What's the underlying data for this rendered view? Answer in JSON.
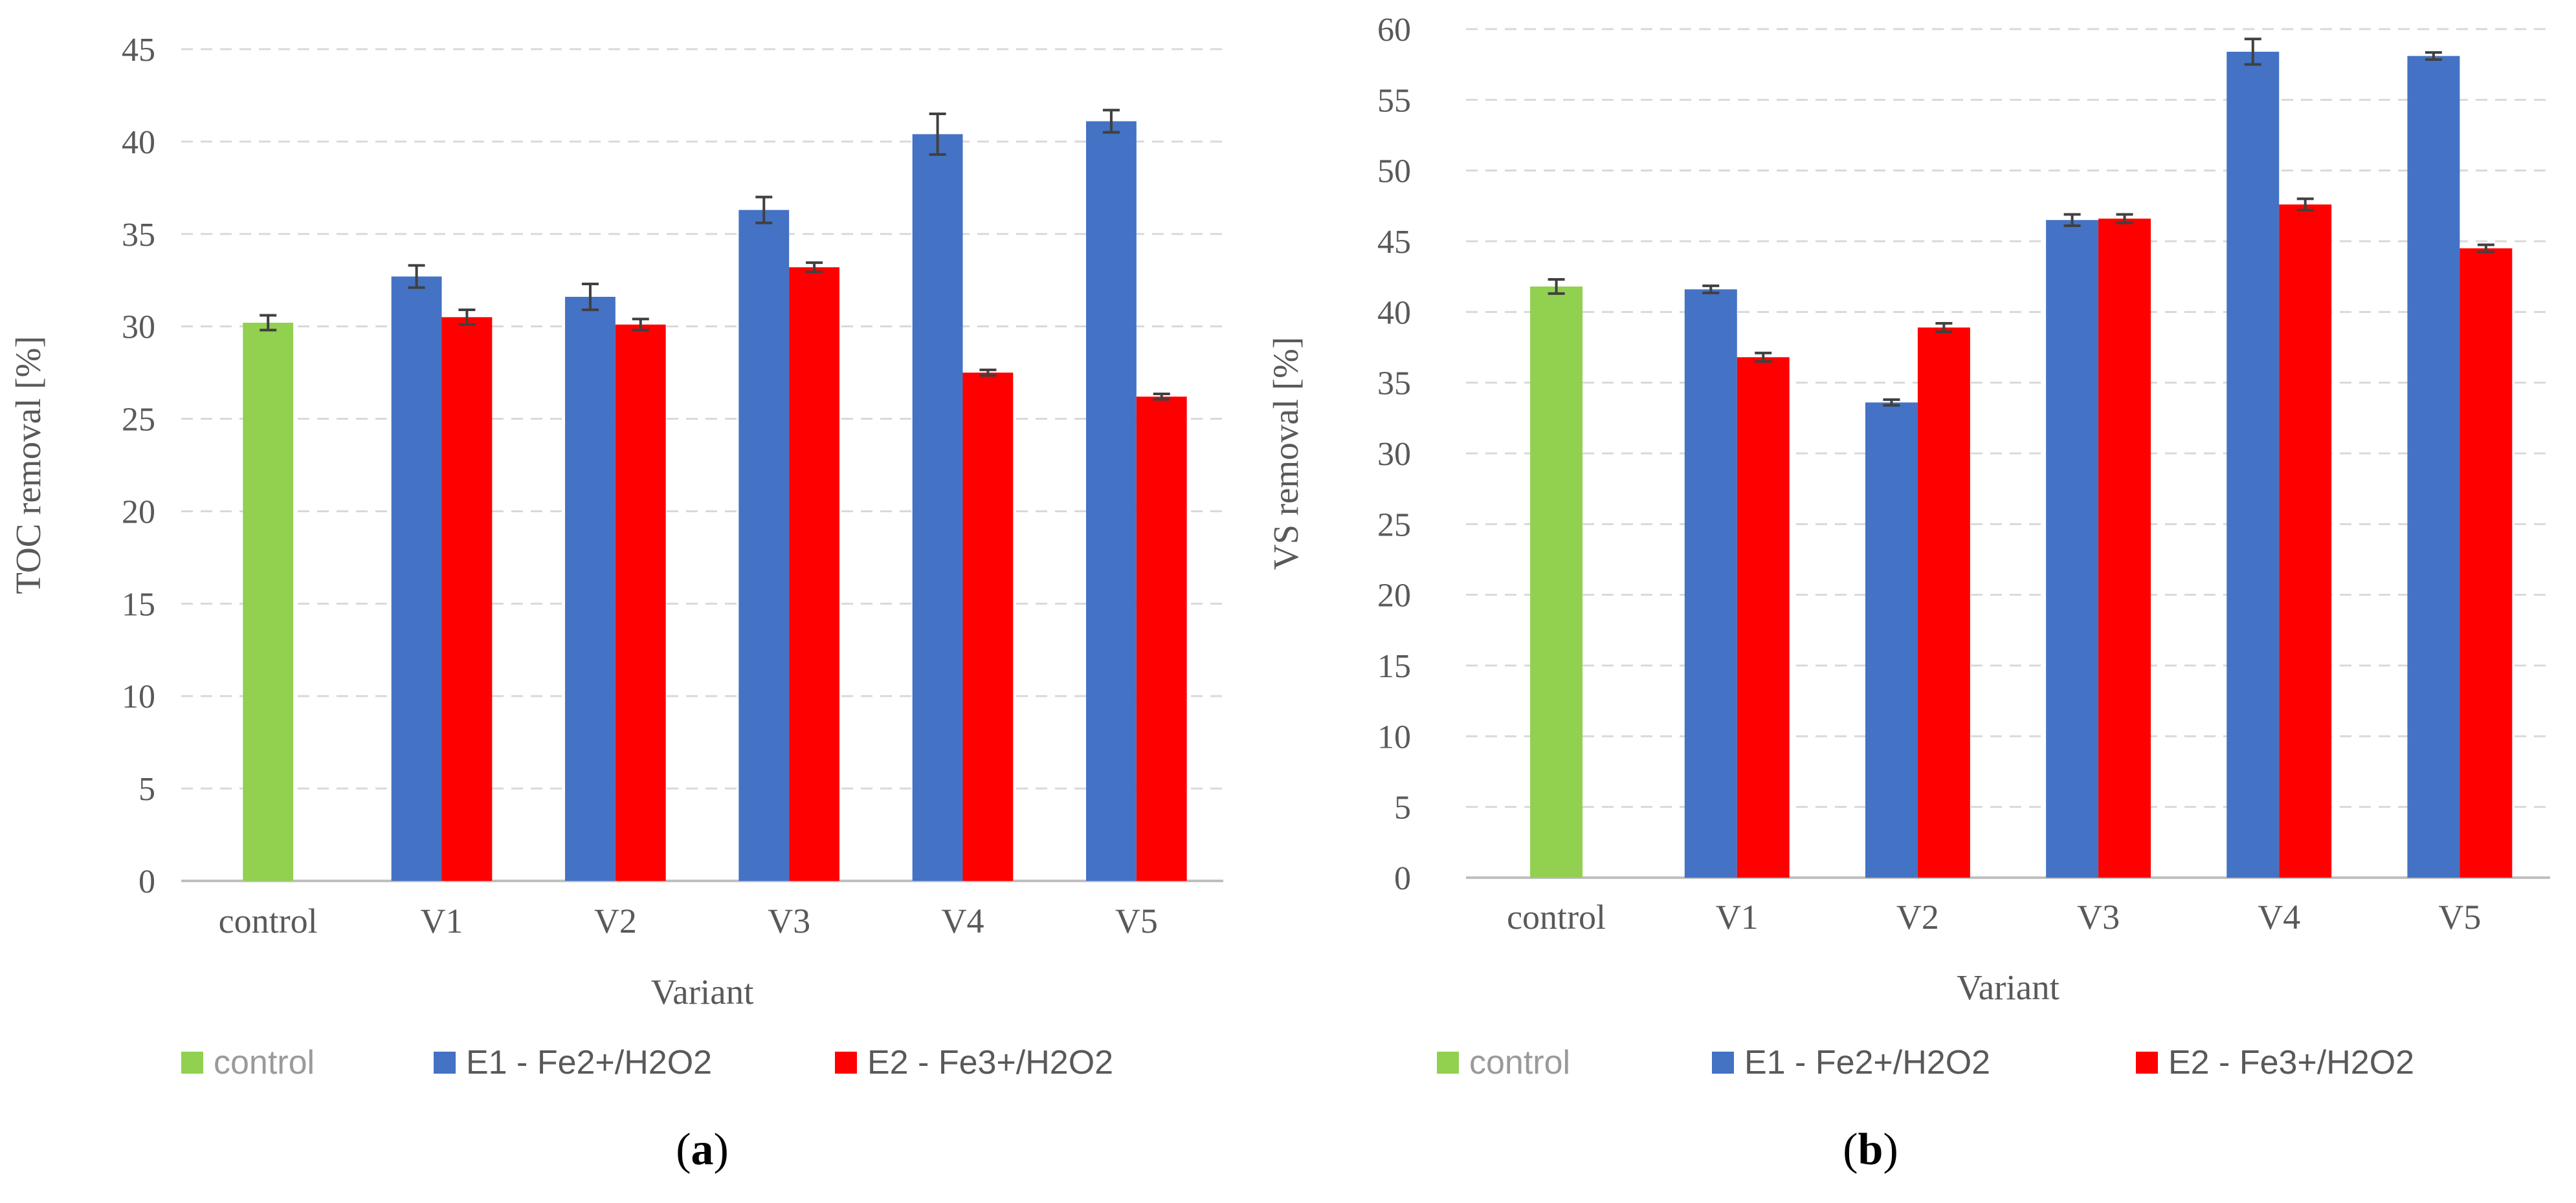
{
  "colors": {
    "control": "#92D050",
    "e1": "#4472C4",
    "e2": "#FF0000",
    "grid": "#D9D9D9",
    "axis": "#BFBFBF",
    "error_bar": "#404040"
  },
  "chart_data": [
    {
      "type": "bar",
      "panel": "a",
      "panel_label": "a",
      "ylabel": "TOC removal [%]",
      "xlabel": "Variant",
      "ylim": [
        0,
        45
      ],
      "ytick_step": 5,
      "yticks": [
        "0",
        "5",
        "10",
        "15",
        "20",
        "25",
        "30",
        "35",
        "40",
        "45"
      ],
      "grid": true,
      "legend_position": "bottom",
      "categories": [
        "control",
        "V1",
        "V2",
        "V3",
        "V4",
        "V5"
      ],
      "series": [
        {
          "name": "control",
          "color_key": "control",
          "values": [
            30.2,
            null,
            null,
            null,
            null,
            null
          ],
          "errors": [
            0.4,
            null,
            null,
            null,
            null,
            null
          ]
        },
        {
          "name": "E1 - Fe2+/H2O2",
          "color_key": "e1",
          "values": [
            null,
            32.7,
            31.6,
            36.3,
            40.4,
            41.1
          ],
          "errors": [
            null,
            0.6,
            0.7,
            0.7,
            1.1,
            0.6
          ]
        },
        {
          "name": "E2 - Fe3+/H2O2",
          "color_key": "e2",
          "values": [
            null,
            30.5,
            30.1,
            33.2,
            27.5,
            26.2
          ],
          "errors": [
            null,
            0.4,
            0.3,
            0.25,
            0.15,
            0.15
          ]
        }
      ]
    },
    {
      "type": "bar",
      "panel": "b",
      "panel_label": "b",
      "ylabel": "VS removal [%]",
      "xlabel": "Variant",
      "ylim": [
        0,
        60
      ],
      "ytick_step": 5,
      "yticks": [
        "0",
        "5",
        "10",
        "15",
        "20",
        "25",
        "30",
        "35",
        "40",
        "45",
        "50",
        "55",
        "60"
      ],
      "grid": true,
      "legend_position": "bottom",
      "categories": [
        "control",
        "V1",
        "V2",
        "V3",
        "V4",
        "V5"
      ],
      "series": [
        {
          "name": "control",
          "color_key": "control",
          "values": [
            41.8,
            null,
            null,
            null,
            null,
            null
          ],
          "errors": [
            0.5,
            null,
            null,
            null,
            null,
            null
          ]
        },
        {
          "name": "E1 - Fe2+/H2O2",
          "color_key": "e1",
          "values": [
            null,
            41.6,
            33.6,
            46.5,
            58.4,
            58.1
          ],
          "errors": [
            null,
            0.25,
            0.2,
            0.4,
            0.9,
            0.25
          ]
        },
        {
          "name": "E2 - Fe3+/H2O2",
          "color_key": "e2",
          "values": [
            null,
            36.8,
            38.9,
            46.6,
            47.6,
            44.5
          ],
          "errors": [
            null,
            0.3,
            0.3,
            0.3,
            0.4,
            0.25
          ]
        }
      ]
    }
  ]
}
